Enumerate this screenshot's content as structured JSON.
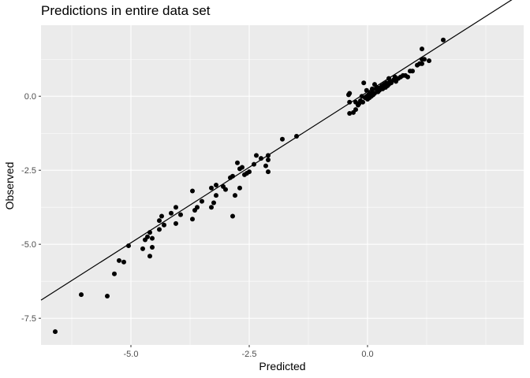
{
  "chart_data": {
    "type": "scatter",
    "title": "Predictions in entire data set",
    "xlabel": "Predicted",
    "ylabel": "Observed",
    "xlim": [
      -6.9,
      3.3
    ],
    "ylim": [
      -8.4,
      2.4
    ],
    "x_ticks": [
      {
        "value": -5.0,
        "label": "-5.0"
      },
      {
        "value": -2.5,
        "label": "-2.5"
      },
      {
        "value": 0.0,
        "label": "0.0"
      }
    ],
    "y_ticks": [
      {
        "value": 0.0,
        "label": "0.0"
      },
      {
        "value": -2.5,
        "label": "-2.5"
      },
      {
        "value": -5.0,
        "label": "-5.0"
      },
      {
        "value": -7.5,
        "label": "-7.5"
      }
    ],
    "grid": true,
    "background": "#ebebeb",
    "point_color": "#000000",
    "trend_line": {
      "intercept": 0.15,
      "slope": 1.02
    },
    "points": [
      [
        -6.6,
        -7.95
      ],
      [
        -6.05,
        -6.7
      ],
      [
        -5.5,
        -6.75
      ],
      [
        -5.35,
        -6.0
      ],
      [
        -5.25,
        -5.55
      ],
      [
        -5.15,
        -5.6
      ],
      [
        -5.05,
        -5.05
      ],
      [
        -4.75,
        -5.15
      ],
      [
        -4.7,
        -4.85
      ],
      [
        -4.65,
        -4.75
      ],
      [
        -4.6,
        -4.6
      ],
      [
        -4.6,
        -5.4
      ],
      [
        -4.55,
        -5.1
      ],
      [
        -4.55,
        -4.8
      ],
      [
        -4.4,
        -4.5
      ],
      [
        -4.4,
        -4.2
      ],
      [
        -4.35,
        -4.05
      ],
      [
        -4.3,
        -4.35
      ],
      [
        -4.15,
        -3.95
      ],
      [
        -4.05,
        -3.75
      ],
      [
        -4.05,
        -4.3
      ],
      [
        -3.95,
        -4.0
      ],
      [
        -3.7,
        -4.15
      ],
      [
        -3.7,
        -3.2
      ],
      [
        -3.65,
        -3.85
      ],
      [
        -3.6,
        -3.75
      ],
      [
        -3.5,
        -3.55
      ],
      [
        -3.3,
        -3.75
      ],
      [
        -3.3,
        -3.1
      ],
      [
        -3.25,
        -3.6
      ],
      [
        -3.2,
        -3.35
      ],
      [
        -3.2,
        -3.0
      ],
      [
        -3.05,
        -3.05
      ],
      [
        -3.0,
        -3.15
      ],
      [
        -2.9,
        -2.75
      ],
      [
        -2.85,
        -2.7
      ],
      [
        -2.85,
        -4.05
      ],
      [
        -2.8,
        -3.35
      ],
      [
        -2.75,
        -2.25
      ],
      [
        -2.7,
        -3.1
      ],
      [
        -2.7,
        -2.45
      ],
      [
        -2.65,
        -2.4
      ],
      [
        -2.6,
        -2.65
      ],
      [
        -2.55,
        -2.6
      ],
      [
        -2.5,
        -2.55
      ],
      [
        -2.4,
        -2.3
      ],
      [
        -2.35,
        -2.0
      ],
      [
        -2.25,
        -2.1
      ],
      [
        -2.15,
        -2.35
      ],
      [
        -2.1,
        -2.55
      ],
      [
        -2.1,
        -2.15
      ],
      [
        -2.1,
        -2.0
      ],
      [
        -1.8,
        -1.45
      ],
      [
        -1.5,
        -1.35
      ],
      [
        -0.4,
        0.05
      ],
      [
        -0.38,
        0.1
      ],
      [
        -0.38,
        -0.2
      ],
      [
        -0.38,
        -0.58
      ],
      [
        -0.3,
        -0.55
      ],
      [
        -0.25,
        -0.45
      ],
      [
        -0.25,
        -0.2
      ],
      [
        -0.2,
        -0.3
      ],
      [
        -0.18,
        -0.25
      ],
      [
        -0.15,
        -0.15
      ],
      [
        -0.12,
        0.0
      ],
      [
        -0.1,
        -0.2
      ],
      [
        -0.08,
        0.45
      ],
      [
        -0.05,
        -0.05
      ],
      [
        -0.02,
        0.0
      ],
      [
        0.0,
        -0.1
      ],
      [
        0.02,
        0.05
      ],
      [
        0.04,
        -0.05
      ],
      [
        0.05,
        0.1
      ],
      [
        0.08,
        0.0
      ],
      [
        0.1,
        0.15
      ],
      [
        0.12,
        0.05
      ],
      [
        0.15,
        0.1
      ],
      [
        0.15,
        0.4
      ],
      [
        0.18,
        0.25
      ],
      [
        0.2,
        0.3
      ],
      [
        0.22,
        0.15
      ],
      [
        0.25,
        0.2
      ],
      [
        0.28,
        0.3
      ],
      [
        0.3,
        0.35
      ],
      [
        0.32,
        0.25
      ],
      [
        0.35,
        0.4
      ],
      [
        0.38,
        0.3
      ],
      [
        0.4,
        0.45
      ],
      [
        0.42,
        0.35
      ],
      [
        0.45,
        0.4
      ],
      [
        0.45,
        0.6
      ],
      [
        0.48,
        0.5
      ],
      [
        0.5,
        0.45
      ],
      [
        0.55,
        0.55
      ],
      [
        0.6,
        0.5
      ],
      [
        0.65,
        0.6
      ],
      [
        0.7,
        0.65
      ],
      [
        0.75,
        0.7
      ],
      [
        0.8,
        0.7
      ],
      [
        0.85,
        0.65
      ],
      [
        0.9,
        0.85
      ],
      [
        0.95,
        0.85
      ],
      [
        1.05,
        1.05
      ],
      [
        1.1,
        1.1
      ],
      [
        1.15,
        1.1
      ],
      [
        1.15,
        1.6
      ],
      [
        1.2,
        1.25
      ],
      [
        1.3,
        1.2
      ],
      [
        1.15,
        1.25
      ],
      [
        0.58,
        0.65
      ],
      [
        -0.02,
        0.2
      ],
      [
        0.1,
        0.25
      ],
      [
        1.6,
        1.9
      ]
    ]
  }
}
